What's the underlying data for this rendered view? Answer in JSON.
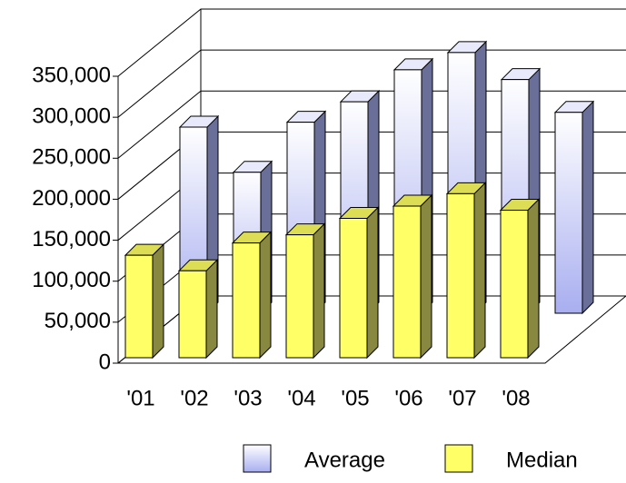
{
  "chart_data": {
    "type": "bar3d",
    "categories": [
      "'01",
      "'02",
      "'03",
      "'04",
      "'05",
      "'06",
      "'07",
      "'08"
    ],
    "series": [
      {
        "name": "Average",
        "color": "#a8aef0",
        "values": [
          227000,
          172000,
          233000,
          258000,
          297000,
          318000,
          285000,
          245000
        ]
      },
      {
        "name": "Median",
        "color": "#ffff66",
        "values": [
          125000,
          106000,
          140000,
          150000,
          170000,
          185000,
          200000,
          180000
        ]
      }
    ],
    "ylim": [
      0,
      350000
    ],
    "yticks": [
      0,
      {
        "value": 50000,
        "label": "50,000"
      },
      {
        "value": 100000,
        "label": "100,000"
      },
      {
        "value": 150000,
        "label": "150,000"
      },
      {
        "value": 200000,
        "label": "200,000"
      },
      {
        "value": 250000,
        "label": "250,000"
      },
      {
        "value": 300000,
        "label": "300,000"
      },
      {
        "value": 350000,
        "label": "350,000"
      }
    ],
    "grid": true
  }
}
